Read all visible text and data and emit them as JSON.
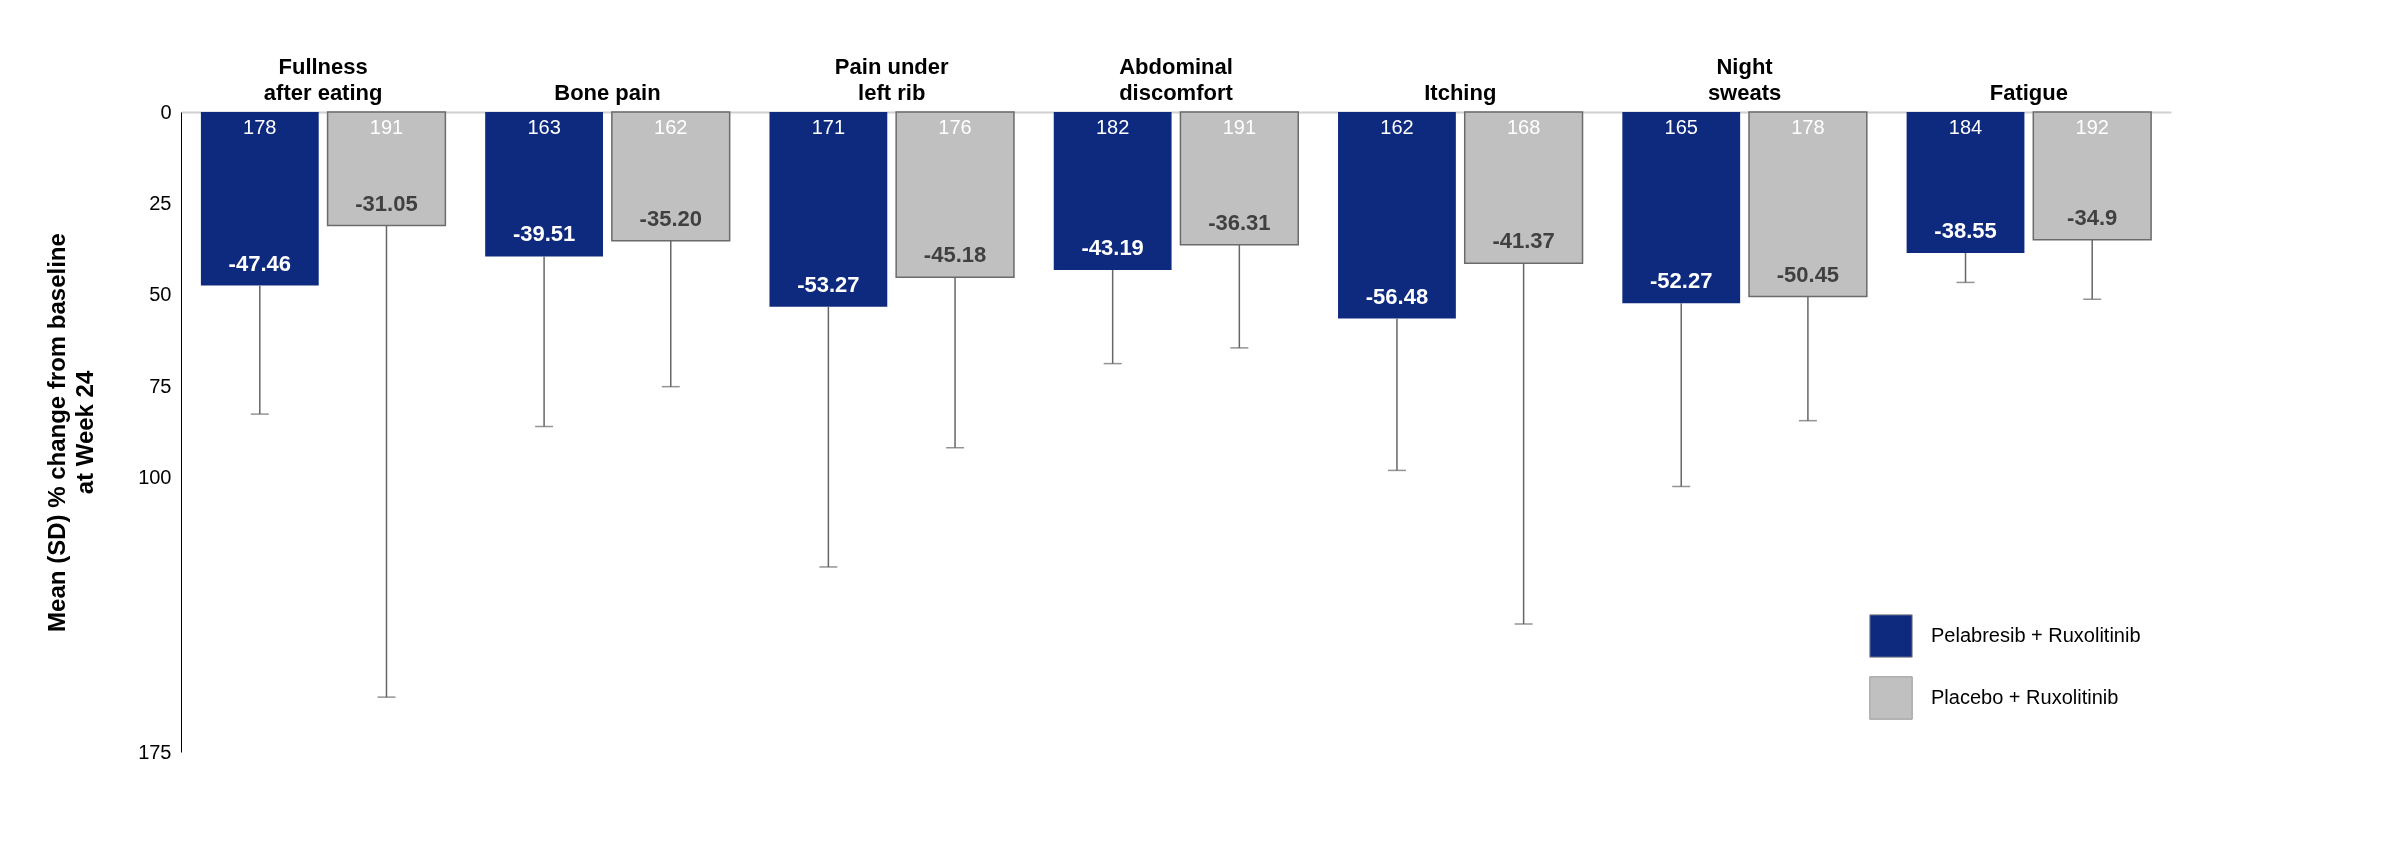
{
  "chart_data": {
    "type": "bar",
    "ylabel": "Mean (SD) % change from baseline\nat Week 24",
    "categories": [
      "Fullness after eating",
      "Bone pain",
      "Pain under left rib",
      "Abdominal discomfort",
      "Itching",
      "Night sweats",
      "Fatigue"
    ],
    "series": [
      {
        "name": "Pelabresib + Ruxolitinib",
        "color": "#0e2a7f",
        "values": [
          -47.46,
          -39.51,
          -53.27,
          -43.19,
          -56.48,
          -52.27,
          -38.55
        ],
        "value_labels": [
          "-47.46",
          "-39.51",
          "-53.27",
          "-43.19",
          "-56.48",
          "-52.27",
          "-38.55"
        ],
        "errors": [
          [
            -82.6,
            -47.46
          ],
          [
            -86,
            -39.51
          ],
          [
            -124.4,
            -53.27
          ],
          [
            -68.8,
            -43.19
          ],
          [
            -98,
            -56.48
          ],
          [
            -102.4,
            -52.27
          ],
          [
            -46.6,
            -38.55
          ]
        ]
      },
      {
        "name": "Placebo + Ruxolitinib",
        "color": "#c0c0c0",
        "values": [
          -31.05,
          -35.2,
          -45.18,
          -36.31,
          -41.37,
          -50.45,
          -34.9
        ],
        "value_labels": [
          "-31.05",
          "-35.20",
          "-45.18",
          "-36.31",
          "-41.37",
          "-50.45",
          "-34.9"
        ],
        "errors": [
          [
            -160,
            -31.05
          ],
          [
            -75.1,
            -35.2
          ],
          [
            -91.8,
            -45.18
          ],
          [
            -64.5,
            -36.31
          ],
          [
            -140,
            -41.37
          ],
          [
            -84.4,
            -50.45
          ],
          [
            -51.2,
            -34.9
          ]
        ]
      }
    ],
    "ylim": [
      -175,
      0
    ],
    "yticks": [
      {
        "value": 0,
        "label": "0"
      },
      {
        "value": -25,
        "label": "25"
      },
      {
        "value": -50,
        "label": "50"
      },
      {
        "value": -75,
        "label": "75"
      },
      {
        "value": -100,
        "label": "100"
      },
      {
        "value": -175,
        "label": "175"
      }
    ],
    "annotations": [
      {
        "text": "178",
        "x": "Fullness after eating",
        "y": 0
      },
      {
        "text": "191",
        "x": "Fullness after eating",
        "y": 0
      },
      {
        "text": "163",
        "x": "Bone pain",
        "y": 0
      },
      {
        "text": "162",
        "x": "Bone pain",
        "y": 0
      },
      {
        "text": "171",
        "x": "Pain under left rib",
        "y": 0
      },
      {
        "text": "176",
        "x": "Pain under left rib",
        "y": 0
      },
      {
        "text": "182",
        "x": "Abdominal discomfort",
        "y": 0
      },
      {
        "text": "191",
        "x": "Abdominal discomfort",
        "y": 0
      },
      {
        "text": "162",
        "x": "Itching",
        "y": 0
      },
      {
        "text": "168",
        "x": "Itching",
        "y": 0
      },
      {
        "text": "165",
        "x": "Night sweats",
        "y": 0
      },
      {
        "text": "178",
        "x": "Night sweats",
        "y": 0
      },
      {
        "text": "184",
        "x": "Fatigue",
        "y": 0
      },
      {
        "text": "192",
        "x": "Fatigue",
        "y": 0
      }
    ],
    "legend": "bottom right",
    "grid": false
  }
}
